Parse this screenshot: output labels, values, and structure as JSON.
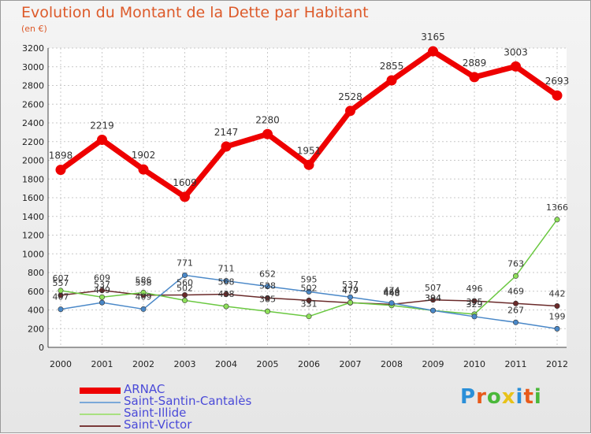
{
  "header": {
    "title": "Evolution du Montant de la Dette par Habitant",
    "unit": "(en €)"
  },
  "logo": {
    "text": "Proxiti",
    "colors": [
      "#2a8fd8",
      "#e85a1a",
      "#4ab83a",
      "#e8c21a",
      "#2a8fd8",
      "#e85a1a",
      "#4ab83a"
    ]
  },
  "chart_data": {
    "type": "line",
    "title": "Evolution du Montant de la Dette par Habitant",
    "ylabel": "(en €)",
    "x": [
      2000,
      2001,
      2002,
      2003,
      2004,
      2005,
      2006,
      2007,
      2008,
      2009,
      2010,
      2011,
      2012
    ],
    "ylim": [
      0,
      3200
    ],
    "yticks": [
      0,
      200,
      400,
      600,
      800,
      1000,
      1200,
      1400,
      1600,
      1800,
      2000,
      2200,
      2400,
      2600,
      2800,
      3000,
      3200
    ],
    "grid": true,
    "legend": "bottom-left",
    "series": [
      {
        "name": "ARNAC",
        "color": "#ee0000",
        "values": [
          1898,
          2219,
          1902,
          1609,
          2147,
          2280,
          1951,
          2528,
          2855,
          3165,
          2889,
          3003,
          2693
        ]
      },
      {
        "name": "Saint-Santin-Cantalès",
        "color": "#5a9ad8",
        "values": [
          407,
          479,
          409,
          771,
          711,
          652,
          595,
          537,
          474,
          394,
          329,
          267,
          199
        ]
      },
      {
        "name": "Saint-Illide",
        "color": "#8ed85a",
        "values": [
          607,
          537,
          586,
          502,
          438,
          385,
          331,
          479,
          448,
          394,
          355,
          763,
          1366
        ]
      },
      {
        "name": "Saint-Victor",
        "color": "#6a2a2a",
        "values": [
          557,
          609,
          558,
          560,
          568,
          528,
          502,
          477,
          460,
          507,
          496,
          469,
          442
        ]
      }
    ]
  }
}
